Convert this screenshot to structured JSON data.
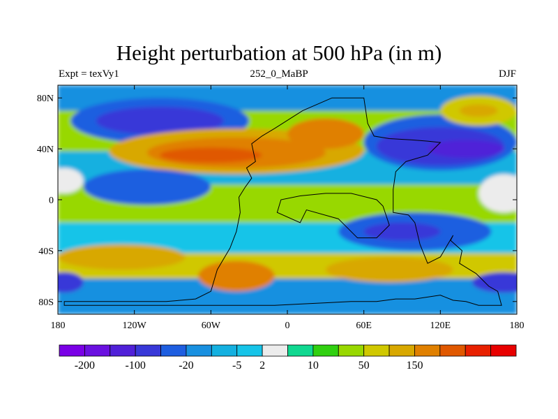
{
  "chart_data": {
    "type": "heatmap",
    "title": "Height perturbation at 500 hPa (in m)",
    "left_label": "Expt = texVy1",
    "center_label": "252_0_MaBP",
    "right_label": "DJF",
    "x_ticks": [
      "180",
      "120W",
      "60W",
      "0",
      "60E",
      "120E",
      "180"
    ],
    "x_values": [
      -180,
      -120,
      -60,
      0,
      60,
      120,
      180
    ],
    "y_ticks": [
      "80N",
      "40N",
      "0",
      "40S",
      "80S"
    ],
    "y_values": [
      80,
      40,
      0,
      -40,
      -80
    ],
    "xlim": [
      -180,
      180
    ],
    "ylim": [
      -90,
      90
    ],
    "colorbar": {
      "colors": [
        "#7a00e6",
        "#6a10e0",
        "#5020d8",
        "#3838d8",
        "#1e5ee0",
        "#1890e0",
        "#14b0e0",
        "#16c4e8",
        "#ececec",
        "#10d890",
        "#30d010",
        "#98d800",
        "#d0c800",
        "#d8a800",
        "#e08000",
        "#e05800",
        "#e82000",
        "#e80000"
      ],
      "labels": [
        "-200",
        "-100",
        "-20",
        "-5",
        "2",
        "10",
        "50",
        "150"
      ],
      "label_boundaries": [
        1,
        3,
        5,
        7,
        8,
        10,
        12,
        14
      ]
    },
    "bands": [
      {
        "name": "band-arctic",
        "color": "#1890e0",
        "pts": [
          [
            -180,
            90
          ],
          [
            180,
            90
          ],
          [
            180,
            70
          ],
          [
            -180,
            70
          ]
        ]
      },
      {
        "name": "band-n-mid",
        "color": "#98d800",
        "pts": [
          [
            -180,
            70
          ],
          [
            180,
            70
          ],
          [
            180,
            38
          ],
          [
            -180,
            38
          ]
        ]
      },
      {
        "name": "band-n-sub",
        "color": "#14b0e0",
        "pts": [
          [
            -180,
            38
          ],
          [
            180,
            38
          ],
          [
            180,
            12
          ],
          [
            -180,
            12
          ]
        ]
      },
      {
        "name": "band-eq",
        "color": "#98d800",
        "pts": [
          [
            -180,
            12
          ],
          [
            180,
            12
          ],
          [
            180,
            -18
          ],
          [
            -180,
            -18
          ]
        ]
      },
      {
        "name": "band-s-sub",
        "color": "#16c4e8",
        "pts": [
          [
            -180,
            -18
          ],
          [
            180,
            -18
          ],
          [
            180,
            -42
          ],
          [
            -180,
            -42
          ]
        ]
      },
      {
        "name": "band-s-mid",
        "color": "#d0c800",
        "pts": [
          [
            -180,
            -42
          ],
          [
            180,
            -42
          ],
          [
            180,
            -62
          ],
          [
            -180,
            -62
          ]
        ]
      },
      {
        "name": "band-s-pol",
        "color": "#1890e0",
        "pts": [
          [
            -180,
            -62
          ],
          [
            180,
            -62
          ],
          [
            180,
            -90
          ],
          [
            -180,
            -90
          ]
        ]
      }
    ],
    "blobs": [
      {
        "name": "low-npac",
        "color": "#1e5ee0",
        "cx": -100,
        "cy": 62,
        "rx": 70,
        "ry": 18
      },
      {
        "name": "low-npac-core",
        "color": "#3838d8",
        "cx": -100,
        "cy": 62,
        "rx": 50,
        "ry": 11
      },
      {
        "name": "high-natl",
        "color": "#d8a800",
        "cx": -40,
        "cy": 38,
        "rx": 100,
        "ry": 18
      },
      {
        "name": "high-natl-mid",
        "color": "#e08000",
        "cx": -40,
        "cy": 37,
        "rx": 70,
        "ry": 12
      },
      {
        "name": "high-natl-core",
        "color": "#e05800",
        "cx": -60,
        "cy": 35,
        "rx": 40,
        "ry": 6
      },
      {
        "name": "high-eur",
        "color": "#e08000",
        "cx": 30,
        "cy": 52,
        "rx": 30,
        "ry": 12
      },
      {
        "name": "low-asia",
        "color": "#1e5ee0",
        "cx": 120,
        "cy": 45,
        "rx": 60,
        "ry": 22
      },
      {
        "name": "low-asia-mid",
        "color": "#3838d8",
        "cx": 120,
        "cy": 42,
        "rx": 50,
        "ry": 15
      },
      {
        "name": "low-asia-core",
        "color": "#5020d8",
        "cx": 140,
        "cy": 40,
        "rx": 30,
        "ry": 7
      },
      {
        "name": "high-npac",
        "color": "#d0c800",
        "cx": 150,
        "cy": 70,
        "rx": 30,
        "ry": 12
      },
      {
        "name": "high-npac-core",
        "color": "#d8a800",
        "cx": 150,
        "cy": 70,
        "rx": 15,
        "ry": 5
      },
      {
        "name": "low-trop-pac",
        "color": "#1e5ee0",
        "cx": -110,
        "cy": 10,
        "rx": 50,
        "ry": 14
      },
      {
        "name": "low-sio",
        "color": "#1e5ee0",
        "cx": 100,
        "cy": -25,
        "rx": 60,
        "ry": 15
      },
      {
        "name": "low-sio-core",
        "color": "#3838d8",
        "cx": 90,
        "cy": -25,
        "rx": 30,
        "ry": 7
      },
      {
        "name": "high-spac",
        "color": "#d8a800",
        "cx": -130,
        "cy": -45,
        "rx": 50,
        "ry": 10
      },
      {
        "name": "high-satl",
        "color": "#e08000",
        "cx": -40,
        "cy": -60,
        "rx": 30,
        "ry": 12
      },
      {
        "name": "high-sio",
        "color": "#d8a800",
        "cx": 80,
        "cy": -55,
        "rx": 50,
        "ry": 10
      },
      {
        "name": "low-s-east",
        "color": "#3838d8",
        "cx": 170,
        "cy": -65,
        "rx": 25,
        "ry": 8
      },
      {
        "name": "low-s-west",
        "color": "#3838d8",
        "cx": -175,
        "cy": -65,
        "rx": 15,
        "ry": 8
      },
      {
        "name": "neutral-wpac",
        "color": "#ececec",
        "cx": 170,
        "cy": 5,
        "rx": 20,
        "ry": 15
      },
      {
        "name": "neutral-epac",
        "color": "#ececec",
        "cx": -175,
        "cy": 15,
        "rx": 15,
        "ry": 10
      }
    ],
    "continents": [
      [
        [
          -45,
          -83
        ],
        [
          -175,
          -83
        ],
        [
          -175,
          -80
        ],
        [
          -95,
          -80
        ],
        [
          -72,
          -78
        ],
        [
          -60,
          -72
        ],
        [
          -55,
          -55
        ],
        [
          -45,
          -38
        ],
        [
          -40,
          -25
        ],
        [
          -37,
          -10
        ],
        [
          -38,
          2
        ],
        [
          -33,
          10
        ],
        [
          -28,
          17
        ],
        [
          -32,
          25
        ],
        [
          -25,
          30
        ],
        [
          -28,
          44
        ],
        [
          -20,
          50
        ],
        [
          -10,
          56
        ],
        [
          12,
          70
        ],
        [
          35,
          80
        ],
        [
          60,
          80
        ],
        [
          63,
          60
        ],
        [
          68,
          50
        ],
        [
          80,
          48
        ],
        [
          98,
          47
        ],
        [
          110,
          46
        ],
        [
          120,
          45
        ],
        [
          110,
          35
        ],
        [
          93,
          30
        ],
        [
          85,
          22
        ],
        [
          83,
          8
        ],
        [
          83,
          -10
        ],
        [
          95,
          -12
        ],
        [
          100,
          -18
        ],
        [
          104,
          -35
        ],
        [
          110,
          -50
        ],
        [
          120,
          -45
        ],
        [
          130,
          -28
        ],
        [
          128,
          -32
        ],
        [
          137,
          -40
        ],
        [
          135,
          -50
        ],
        [
          148,
          -58
        ],
        [
          158,
          -68
        ],
        [
          165,
          -72
        ],
        [
          168,
          -83
        ],
        [
          150,
          -83
        ],
        [
          140,
          -80
        ],
        [
          130,
          -79
        ],
        [
          120,
          -75
        ],
        [
          100,
          -78
        ],
        [
          85,
          -78
        ],
        [
          70,
          -80
        ],
        [
          50,
          -80
        ],
        [
          30,
          -81
        ],
        [
          10,
          -82
        ],
        [
          -10,
          -83
        ],
        [
          -30,
          -83
        ]
      ],
      [
        [
          -5,
          0
        ],
        [
          -8,
          -10
        ],
        [
          10,
          -18
        ],
        [
          15,
          -8
        ],
        [
          40,
          -15
        ],
        [
          55,
          -30
        ],
        [
          70,
          -30
        ],
        [
          80,
          -20
        ],
        [
          75,
          -5
        ],
        [
          70,
          0
        ],
        [
          50,
          5
        ],
        [
          30,
          5
        ],
        [
          10,
          3
        ]
      ]
    ]
  }
}
